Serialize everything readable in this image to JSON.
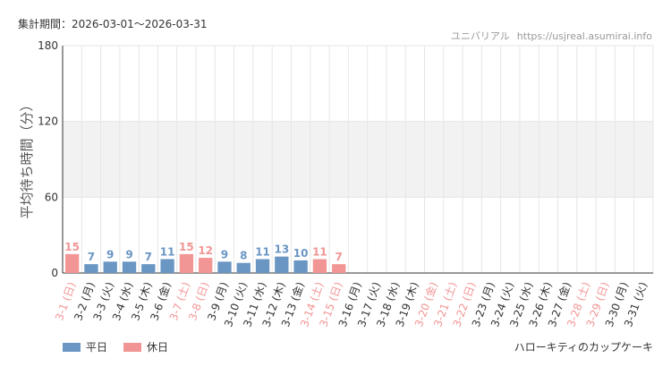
{
  "header": {
    "period_label": "集計期間：2026-03-01～2026-03-31"
  },
  "footer": {
    "attraction": "ハローキティのカップケーキ"
  },
  "colors": {
    "weekday": "#6a96c4",
    "holiday": "#f29595",
    "grid": "#e6e6e6",
    "band": "#f2f2f2",
    "axis": "#333333"
  },
  "chart_data": {
    "type": "bar",
    "site_name": "ユニバリアル",
    "site_url": "https://usjreal.asumirai.info",
    "ylabel": "平均待ち時間（分）",
    "xlabel": "",
    "ylim": [
      0,
      180
    ],
    "yticks": [
      0,
      60,
      120,
      180
    ],
    "shaded_bands": [
      [
        60,
        120
      ]
    ],
    "grid": true,
    "legend_position": "bottom-left",
    "legend": [
      {
        "key": "weekday",
        "label": "平日"
      },
      {
        "key": "holiday",
        "label": "休日"
      }
    ],
    "categories": [
      "3-1 (日)",
      "3-2 (月)",
      "3-3 (火)",
      "3-4 (水)",
      "3-5 (木)",
      "3-6 (金)",
      "3-7 (土)",
      "3-8 (日)",
      "3-9 (月)",
      "3-10 (火)",
      "3-11 (水)",
      "3-12 (木)",
      "3-13 (金)",
      "3-14 (土)",
      "3-15 (日)",
      "3-16 (月)",
      "3-17 (火)",
      "3-18 (水)",
      "3-19 (木)",
      "3-20 (金)",
      "3-21 (土)",
      "3-22 (日)",
      "3-23 (月)",
      "3-24 (火)",
      "3-25 (水)",
      "3-26 (木)",
      "3-27 (金)",
      "3-28 (土)",
      "3-29 (日)",
      "3-30 (月)",
      "3-31 (火)"
    ],
    "day_types": [
      "holiday",
      "weekday",
      "weekday",
      "weekday",
      "weekday",
      "weekday",
      "holiday",
      "holiday",
      "weekday",
      "weekday",
      "weekday",
      "weekday",
      "weekday",
      "holiday",
      "holiday",
      "weekday",
      "weekday",
      "weekday",
      "weekday",
      "holiday",
      "holiday",
      "holiday",
      "weekday",
      "weekday",
      "weekday",
      "weekday",
      "weekday",
      "holiday",
      "holiday",
      "weekday",
      "weekday"
    ],
    "values": [
      15,
      7,
      9,
      9,
      7,
      11,
      15,
      12,
      9,
      8,
      11,
      13,
      10,
      11,
      7,
      null,
      null,
      null,
      null,
      null,
      null,
      null,
      null,
      null,
      null,
      null,
      null,
      null,
      null,
      null,
      null
    ]
  }
}
